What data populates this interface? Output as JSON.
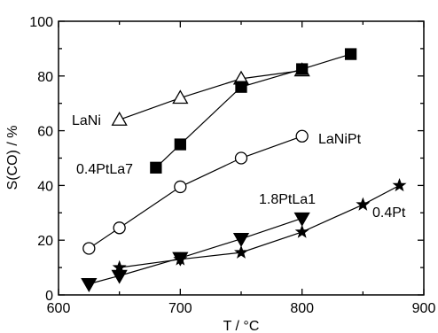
{
  "chart_data": {
    "type": "line",
    "xlabel": "T / °C",
    "ylabel": "S(CO) / %",
    "xlim": [
      600,
      900
    ],
    "ylim": [
      0,
      100
    ],
    "xticks": [
      600,
      700,
      800,
      900
    ],
    "yticks": [
      0,
      20,
      40,
      60,
      80,
      100
    ],
    "grid": false,
    "series": [
      {
        "name": "LaNi",
        "marker": "open-triangle-up",
        "x": [
          650,
          700,
          750,
          800
        ],
        "y": [
          64,
          72,
          79,
          82
        ]
      },
      {
        "name": "0.4PtLa7",
        "marker": "filled-square",
        "x": [
          680,
          700,
          750,
          800,
          840
        ],
        "y": [
          46.5,
          55,
          76,
          82.5,
          88
        ]
      },
      {
        "name": "LaNiPt",
        "marker": "open-circle",
        "x": [
          625,
          650,
          700,
          750,
          800
        ],
        "y": [
          17,
          24.5,
          39.5,
          50,
          58
        ]
      },
      {
        "name": "1.8PtLa1",
        "marker": "filled-triangle-down",
        "x": [
          625,
          650,
          700,
          750,
          800
        ],
        "y": [
          4,
          7,
          13.5,
          20.5,
          28
        ]
      },
      {
        "name": "0.4Pt",
        "marker": "filled-star",
        "x": [
          650,
          700,
          750,
          800,
          850,
          880
        ],
        "y": [
          10,
          13,
          15.5,
          23,
          33,
          40
        ]
      }
    ]
  }
}
